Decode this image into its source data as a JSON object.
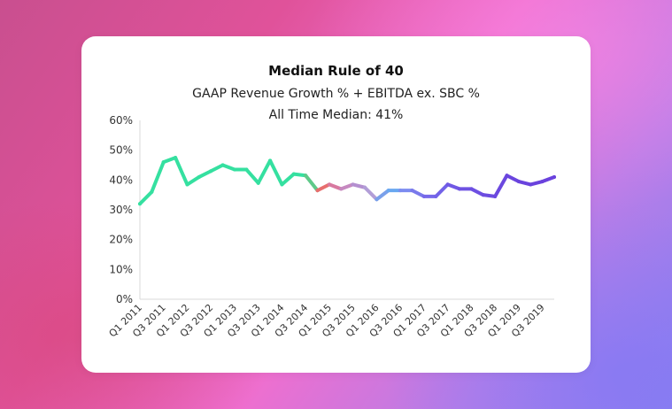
{
  "card": {
    "title": "Median Rule of 40",
    "subtitle": "GAAP Revenue Growth % + EBITDA ex. SBC %",
    "subtitle2": "All Time Median: 41%"
  },
  "chart_data": {
    "type": "line",
    "title": "Median Rule of 40",
    "subtitle": [
      "GAAP Revenue Growth % + EBITDA ex. SBC %",
      "All Time Median: 41%"
    ],
    "xlabel": "",
    "ylabel": "",
    "ylim": [
      0,
      60
    ],
    "yticks": [
      "0%",
      "10%",
      "20%",
      "30%",
      "40%",
      "50%",
      "60%"
    ],
    "ytick_values": [
      0,
      10,
      20,
      30,
      40,
      50,
      60
    ],
    "xticks": [
      "Q1 2011",
      "Q3 2011",
      "Q1 2012",
      "Q3 2012",
      "Q1 2013",
      "Q3 2013",
      "Q1 2014",
      "Q3 2014",
      "Q1 2015",
      "Q3 2015",
      "Q1 2016",
      "Q3 2016",
      "Q1 2017",
      "Q3 2017",
      "Q1 2018",
      "Q3 2018",
      "Q1 2019",
      "Q3 2019"
    ],
    "xtick_every": 2,
    "categories": [
      "Q1 2011",
      "Q2 2011",
      "Q3 2011",
      "Q4 2011",
      "Q1 2012",
      "Q2 2012",
      "Q3 2012",
      "Q4 2012",
      "Q1 2013",
      "Q2 2013",
      "Q3 2013",
      "Q4 2013",
      "Q1 2014",
      "Q2 2014",
      "Q3 2014",
      "Q4 2014",
      "Q1 2015",
      "Q2 2015",
      "Q3 2015",
      "Q4 2015",
      "Q1 2016",
      "Q2 2016",
      "Q3 2016",
      "Q4 2016",
      "Q1 2017",
      "Q2 2017",
      "Q3 2017",
      "Q4 2017",
      "Q1 2018",
      "Q2 2018",
      "Q3 2018",
      "Q4 2018",
      "Q1 2019",
      "Q2 2019",
      "Q3 2019",
      "Q4 2019"
    ],
    "values": [
      32,
      36,
      46,
      47.5,
      38.5,
      41,
      43,
      45,
      43.5,
      43.5,
      39,
      46.5,
      38.5,
      42,
      41.5,
      36.5,
      38.5,
      37,
      38.5,
      37.5,
      33.5,
      36.5,
      36.5,
      36.5,
      34.5,
      34.5,
      38.5,
      37,
      37,
      35,
      34.5,
      41.5,
      39.5,
      38.5,
      39.5,
      41
    ],
    "line_colors": [
      "#35e0a0",
      "#35e0a0",
      "#35e0a0",
      "#35e0a0",
      "#35e0a0",
      "#35e0a0",
      "#35e0a0",
      "#35e0a0",
      "#35e0a0",
      "#35e0a0",
      "#35e0a0",
      "#35e0a0",
      "#35e0a0",
      "#35e0a0",
      "#5fc989",
      "#e76e6e",
      "#d879a0",
      "#c689c0",
      "#b48fd0",
      "#b29ed7",
      "#7aa0ea",
      "#69a8f0",
      "#7c8cf0",
      "#7a79eb",
      "#7668ea",
      "#7262e8",
      "#7058e4",
      "#6e52e2",
      "#6d4fe2",
      "#6c4ce0",
      "#6b48df",
      "#6a45de",
      "#6a43dd",
      "#6a42dd",
      "#6a42dd",
      "#6a42dd"
    ],
    "grid": false
  }
}
